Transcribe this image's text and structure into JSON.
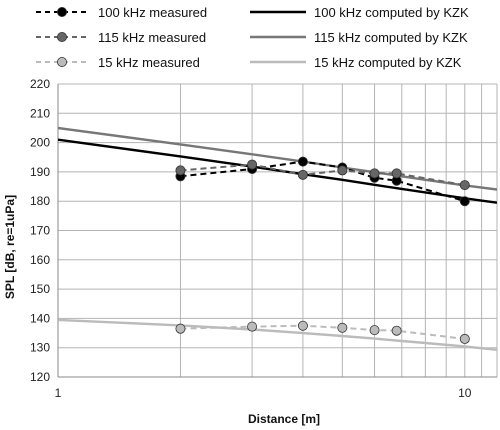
{
  "chart_data": {
    "type": "line",
    "title": "",
    "xlabel": "Distance [m]",
    "ylabel": "SPL [dB, re=1uPa]",
    "x_scale": "log",
    "xlim": [
      1,
      12
    ],
    "ylim": [
      120,
      220
    ],
    "x_ticks": [
      1,
      10
    ],
    "y_ticks": [
      120,
      130,
      140,
      150,
      160,
      170,
      180,
      190,
      200,
      210,
      220
    ],
    "grid": true,
    "legend_position": "top",
    "series": [
      {
        "name": "100 kHz measured",
        "kind": "measured",
        "color": "#000000",
        "x": [
          2,
          3,
          4,
          5,
          6,
          6.8,
          10
        ],
        "y": [
          188.5,
          191,
          193.5,
          191.5,
          188,
          187,
          180
        ]
      },
      {
        "name": "115 kHz measured",
        "kind": "measured",
        "color": "#666666",
        "x": [
          2,
          3,
          4,
          5,
          6,
          6.8,
          10
        ],
        "y": [
          190.5,
          192.5,
          189,
          190.5,
          189.5,
          189.5,
          185.5
        ]
      },
      {
        "name": "15 kHz measured",
        "kind": "measured",
        "color": "#bbbbbb",
        "x": [
          2,
          3,
          4,
          5,
          6,
          6.8,
          10
        ],
        "y": [
          136.5,
          137.2,
          137.5,
          136.8,
          136,
          135.8,
          133
        ]
      },
      {
        "name": "100 kHz computed by KZK",
        "kind": "computed",
        "color": "#000000",
        "x": [
          1,
          2,
          3,
          4,
          5,
          6,
          7,
          8,
          10,
          12
        ],
        "y": [
          201,
          195.3,
          191.8,
          189.2,
          187.3,
          185.6,
          184.2,
          183,
          181,
          179.5
        ]
      },
      {
        "name": "115 kHz computed by KZK",
        "kind": "computed",
        "color": "#777777",
        "x": [
          1,
          2,
          3,
          4,
          5,
          6,
          7,
          8,
          10,
          12
        ],
        "y": [
          205,
          199.4,
          196,
          193.5,
          191.5,
          189.9,
          188.5,
          187.3,
          185.4,
          184
        ]
      },
      {
        "name": "15 kHz computed by KZK",
        "kind": "computed",
        "color": "#bbbbbb",
        "x": [
          1,
          2,
          3,
          4,
          5,
          6,
          7,
          8,
          10,
          12
        ],
        "y": [
          139.5,
          137.6,
          136.2,
          135,
          134,
          133.1,
          132.3,
          131.6,
          130.4,
          129.3
        ]
      }
    ]
  }
}
